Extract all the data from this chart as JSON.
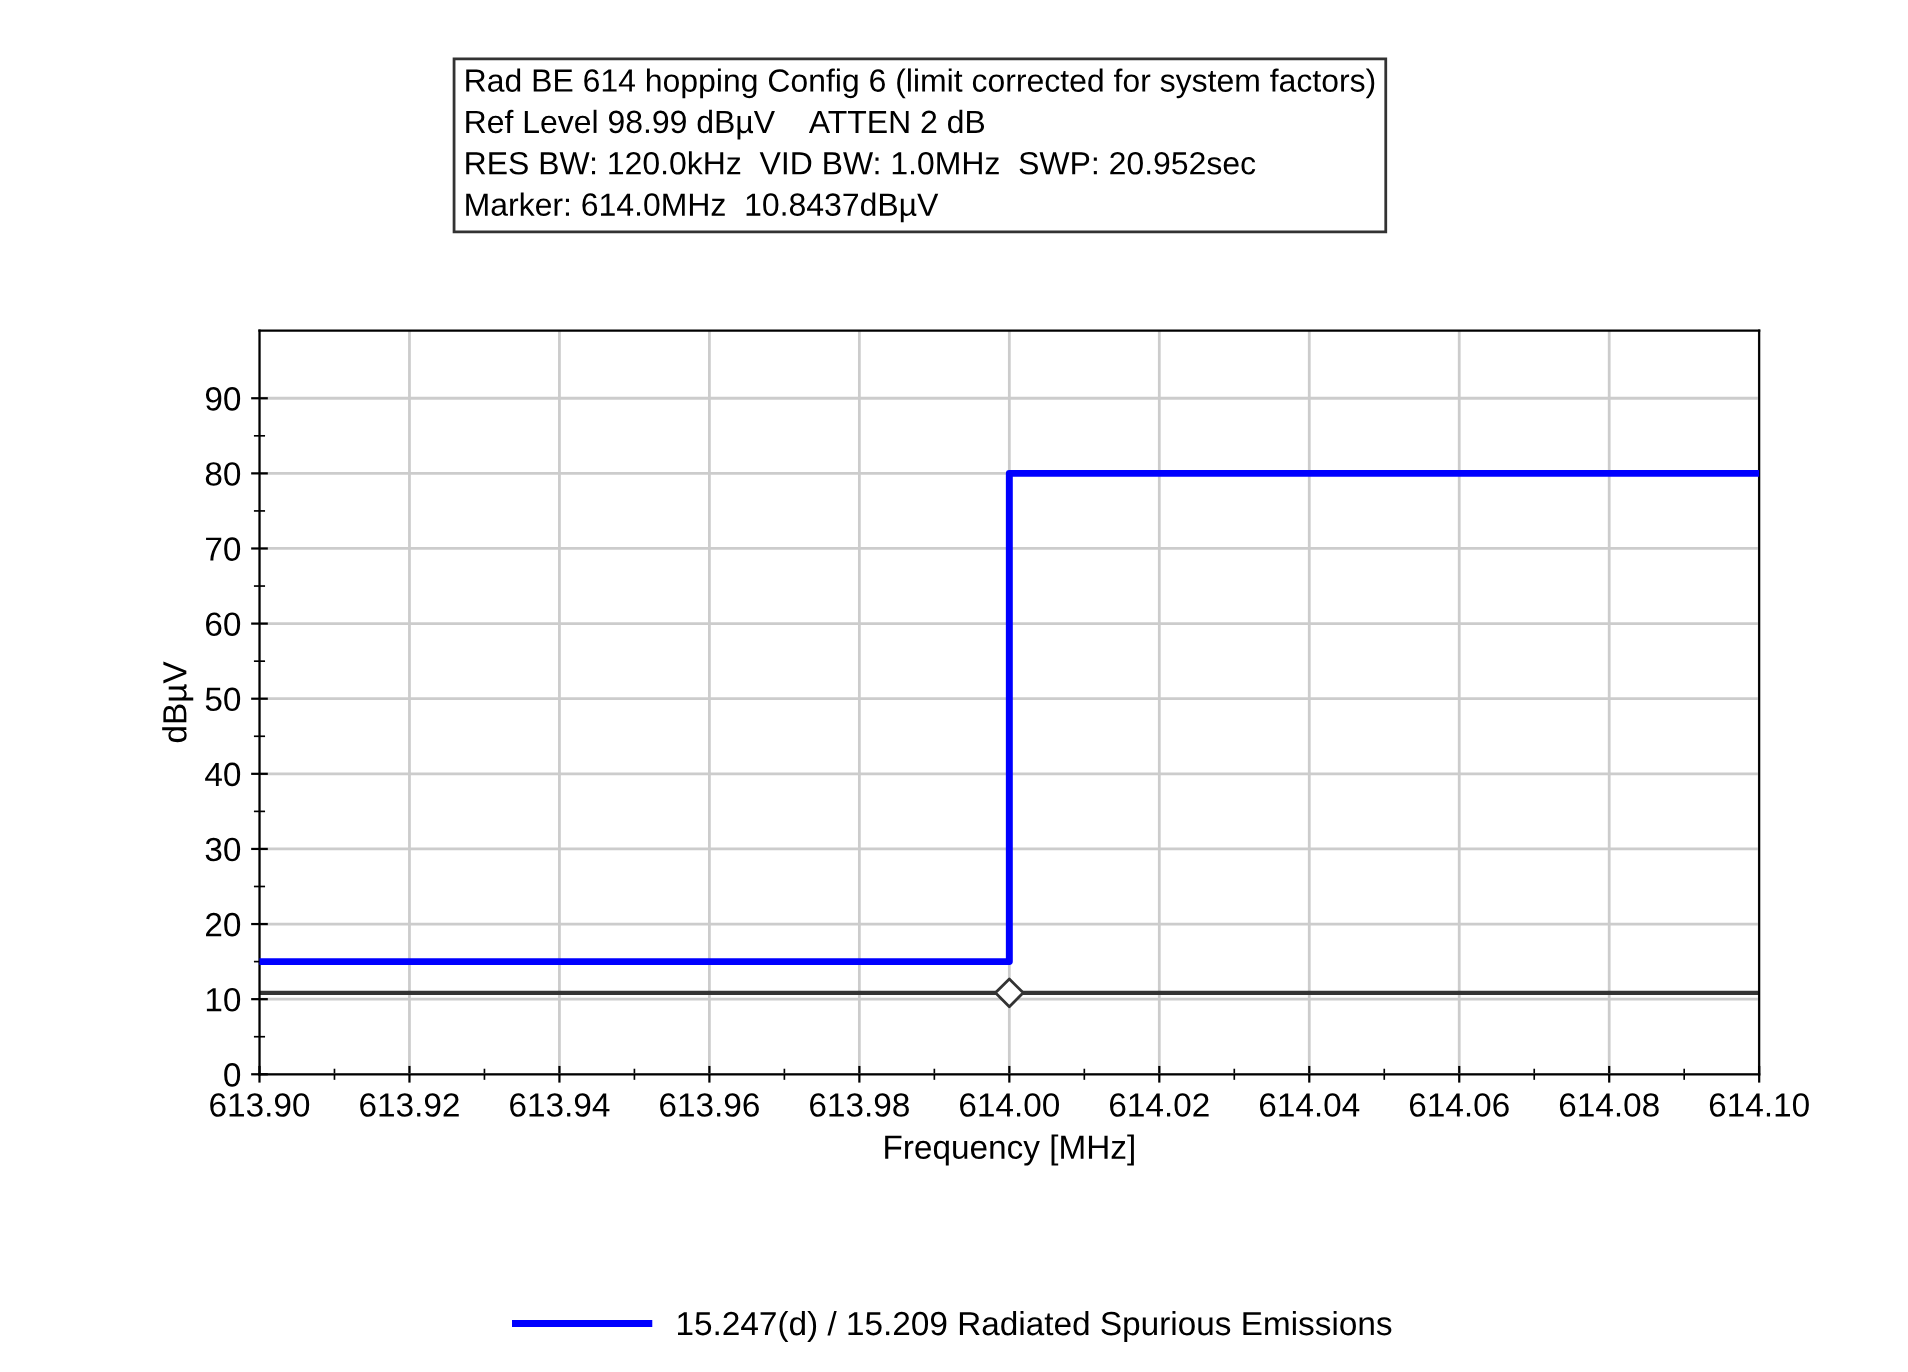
{
  "chart_data": {
    "type": "step",
    "annotations": [
      "Rad BE 614 hopping Config 6 (limit corrected for system factors)",
      "Ref Level 98.99 dBµV    ATTEN 2 dB",
      "RES BW: 120.0kHz  VID BW: 1.0MHz  SWP: 20.952sec",
      "Marker: 614.0MHz  10.8437dBµV"
    ],
    "xlabel": "Frequency [MHz]",
    "ylabel": "dBµV",
    "series": [
      {
        "name": "15.247(d) / 15.209 Radiated Spurious Emissions",
        "color": "#0000ff",
        "x": [
          613.9,
          614.0,
          614.1
        ],
        "values": [
          15,
          80,
          80
        ]
      },
      {
        "type": "line",
        "color": "#333333",
        "x": [
          613.9,
          614.1
        ],
        "values": [
          10.8437,
          10.8437
        ]
      },
      {
        "type": "scatter",
        "color": "#333333",
        "marker": "diamond",
        "x": [
          614.0
        ],
        "values": [
          10.8437
        ]
      }
    ],
    "xlim": [
      613.9,
      614.1
    ],
    "xticks": [
      {
        "value": 613.9,
        "label": "613.90"
      },
      {
        "value": 613.92,
        "label": "613.92"
      },
      {
        "value": 613.94,
        "label": "613.94"
      },
      {
        "value": 613.96,
        "label": "613.96"
      },
      {
        "value": 613.98,
        "label": "613.98"
      },
      {
        "value": 614.0,
        "label": "614.00"
      },
      {
        "value": 614.02,
        "label": "614.02"
      },
      {
        "value": 614.04,
        "label": "614.04"
      },
      {
        "value": 614.06,
        "label": "614.06"
      },
      {
        "value": 614.08,
        "label": "614.08"
      },
      {
        "value": 614.1,
        "label": "614.10"
      }
    ],
    "ylim": [
      0,
      99
    ],
    "yticks": [
      0,
      10,
      20,
      30,
      40,
      50,
      60,
      70,
      80,
      90
    ],
    "grid": true,
    "legend": "bottom"
  }
}
